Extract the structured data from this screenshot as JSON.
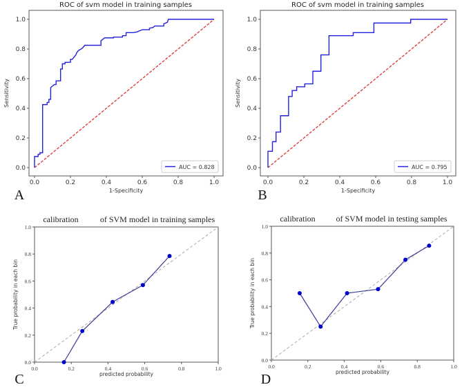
{
  "chart_data": [
    {
      "panel": "A",
      "type": "line",
      "title": "ROC of svm model in training samples",
      "xlabel": "1-Specificity",
      "ylabel": "Sensitivity",
      "xlim": [
        0,
        1
      ],
      "ylim": [
        0,
        1
      ],
      "xticks": [
        "0.0",
        "0.2",
        "0.4",
        "0.6",
        "0.8",
        "1.0"
      ],
      "yticks": [
        "0.0",
        "0.2",
        "0.4",
        "0.6",
        "0.8",
        "1.0"
      ],
      "legend": {
        "label": "AUC = 0.828",
        "placement": "lower-right"
      },
      "colors": {
        "curve": "#2222dd",
        "reference": "#dd3333"
      },
      "series": [
        {
          "name": "ROC",
          "x": [
            0,
            0,
            0.02,
            0.02,
            0.03,
            0.03,
            0.045,
            0.045,
            0.07,
            0.07,
            0.08,
            0.08,
            0.09,
            0.09,
            0.1,
            0.11,
            0.12,
            0.12,
            0.145,
            0.145,
            0.155,
            0.155,
            0.17,
            0.17,
            0.2,
            0.2,
            0.21,
            0.22,
            0.23,
            0.235,
            0.245,
            0.26,
            0.27,
            0.28,
            0.37,
            0.37,
            0.38,
            0.39,
            0.44,
            0.44,
            0.49,
            0.49,
            0.51,
            0.51,
            0.55,
            0.57,
            0.59,
            0.6,
            0.64,
            0.64,
            0.66,
            0.67,
            0.72,
            0.72,
            0.74,
            0.745,
            1
          ],
          "y": [
            0,
            0.075,
            0.075,
            0.09,
            0.09,
            0.1,
            0.1,
            0.425,
            0.425,
            0.44,
            0.44,
            0.46,
            0.46,
            0.54,
            0.55,
            0.56,
            0.56,
            0.585,
            0.585,
            0.665,
            0.665,
            0.7,
            0.7,
            0.71,
            0.71,
            0.73,
            0.73,
            0.745,
            0.76,
            0.775,
            0.79,
            0.8,
            0.81,
            0.825,
            0.825,
            0.855,
            0.865,
            0.875,
            0.875,
            0.88,
            0.88,
            0.89,
            0.89,
            0.91,
            0.91,
            0.915,
            0.925,
            0.93,
            0.93,
            0.94,
            0.945,
            0.955,
            0.955,
            0.97,
            0.98,
            1,
            1
          ]
        },
        {
          "name": "reference",
          "x": [
            0,
            1
          ],
          "y": [
            0,
            1
          ]
        }
      ]
    },
    {
      "panel": "B",
      "type": "line",
      "title": "ROC of svm model in training samples",
      "xlabel": "1-Specificity",
      "ylabel": "Sensitivity",
      "xlim": [
        0,
        1
      ],
      "ylim": [
        0,
        1
      ],
      "xticks": [
        "0.0",
        "0.2",
        "0.4",
        "0.6",
        "0.8",
        "1.0"
      ],
      "yticks": [
        "0.0",
        "0.2",
        "0.4",
        "0.6",
        "0.8",
        "1.0"
      ],
      "legend": {
        "label": "AUC = 0.795",
        "placement": "lower-right"
      },
      "colors": {
        "curve": "#2222dd",
        "reference": "#dd3333"
      },
      "series": [
        {
          "name": "ROC",
          "x": [
            0,
            0,
            0.025,
            0.025,
            0.045,
            0.045,
            0.07,
            0.07,
            0.115,
            0.115,
            0.135,
            0.135,
            0.16,
            0.16,
            0.205,
            0.205,
            0.25,
            0.25,
            0.295,
            0.295,
            0.34,
            0.34,
            0.475,
            0.475,
            0.59,
            0.59,
            0.795,
            0.795,
            1
          ],
          "y": [
            0,
            0.11,
            0.11,
            0.175,
            0.175,
            0.24,
            0.24,
            0.35,
            0.35,
            0.48,
            0.48,
            0.52,
            0.52,
            0.545,
            0.545,
            0.565,
            0.565,
            0.65,
            0.65,
            0.76,
            0.76,
            0.89,
            0.89,
            0.91,
            0.91,
            0.975,
            0.975,
            1,
            1
          ]
        },
        {
          "name": "reference",
          "x": [
            0,
            1
          ],
          "y": [
            0,
            1
          ]
        }
      ]
    },
    {
      "panel": "C",
      "type": "line",
      "title_left": "calibration",
      "title_right": "of SVM model in training samples",
      "xlabel": "predicted probability",
      "ylabel": "True probability in each bin",
      "xlim": [
        0,
        1
      ],
      "ylim": [
        0,
        1
      ],
      "xticks": [
        "0.0",
        "0.2",
        "0.4",
        "0.6",
        "0.8",
        "1.0"
      ],
      "yticks": [
        "0.0",
        "0.2",
        "0.4",
        "0.6",
        "0.8",
        "1.0"
      ],
      "colors": {
        "curve": "#3a3a99",
        "marker": "#0000cc",
        "reference": "#aaaaaa"
      },
      "series": [
        {
          "name": "calibration",
          "x": [
            0.16,
            0.26,
            0.425,
            0.59,
            0.735
          ],
          "y": [
            0,
            0.23,
            0.445,
            0.57,
            0.785
          ]
        },
        {
          "name": "perfect",
          "x": [
            0,
            1
          ],
          "y": [
            0,
            1
          ]
        }
      ]
    },
    {
      "panel": "D",
      "type": "line",
      "title_left": "calibration",
      "title_right": "of SVM model in testing samples",
      "xlabel": "predicted probability",
      "ylabel": "True probability in each bin",
      "xlim": [
        0,
        1
      ],
      "ylim": [
        0,
        1
      ],
      "xticks": [
        "0.0",
        "0.2",
        "0.4",
        "0.6",
        "0.8",
        "1.0"
      ],
      "yticks": [
        "0.0",
        "0.2",
        "0.4",
        "0.6",
        "0.8",
        "1.0"
      ],
      "colors": {
        "curve": "#3a3a99",
        "marker": "#0000cc",
        "reference": "#aaaaaa"
      },
      "series": [
        {
          "name": "calibration",
          "x": [
            0.155,
            0.27,
            0.415,
            0.585,
            0.735,
            0.865
          ],
          "y": [
            0.5,
            0.25,
            0.5,
            0.53,
            0.75,
            0.855
          ]
        },
        {
          "name": "perfect",
          "x": [
            0,
            1
          ],
          "y": [
            0,
            1
          ]
        }
      ]
    }
  ]
}
